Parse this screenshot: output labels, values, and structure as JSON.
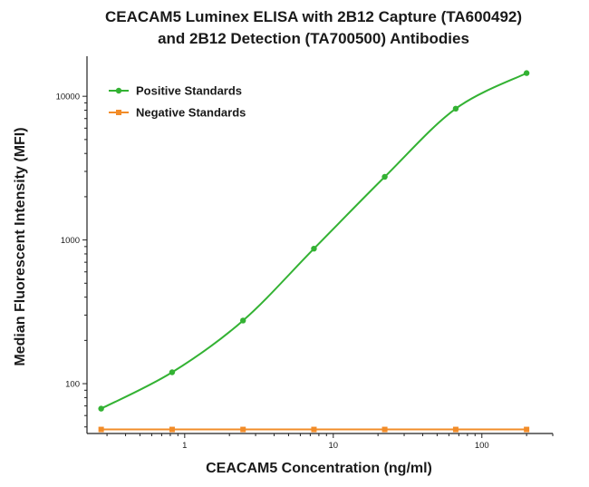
{
  "chart_data": {
    "type": "line",
    "title_lines": [
      "CEACAM5 Luminex ELISA with 2B12 Capture (TA600492)",
      "and 2B12  Detection (TA700500) Antibodies"
    ],
    "xlabel": "CEACAM5 Concentration (ng/ml)",
    "ylabel": "Median Fluorescent Intensity (MFI)",
    "x_scale": "log",
    "y_scale": "log",
    "xlim": [
      0.22,
      300
    ],
    "ylim": [
      45,
      19000
    ],
    "x_ticks": [
      1,
      10,
      100
    ],
    "x_tick_labels": [
      "1",
      "10",
      "100"
    ],
    "y_ticks": [
      100,
      1000,
      10000
    ],
    "y_tick_labels": [
      "100",
      "1000",
      "10000"
    ],
    "legend_position": "top-left",
    "grid": false,
    "series": [
      {
        "name": "Positive Standards",
        "color": "#33b233",
        "marker": "circle",
        "x": [
          0.274,
          0.823,
          2.47,
          7.41,
          22.2,
          66.7,
          200
        ],
        "y": [
          67,
          120,
          275,
          870,
          2750,
          8200,
          14500
        ]
      },
      {
        "name": "Negative Standards",
        "color": "#f28c28",
        "marker": "square",
        "x": [
          0.274,
          0.823,
          2.47,
          7.41,
          22.2,
          66.7,
          200
        ],
        "y": [
          48,
          48,
          48,
          48,
          48,
          48,
          48
        ]
      }
    ]
  }
}
